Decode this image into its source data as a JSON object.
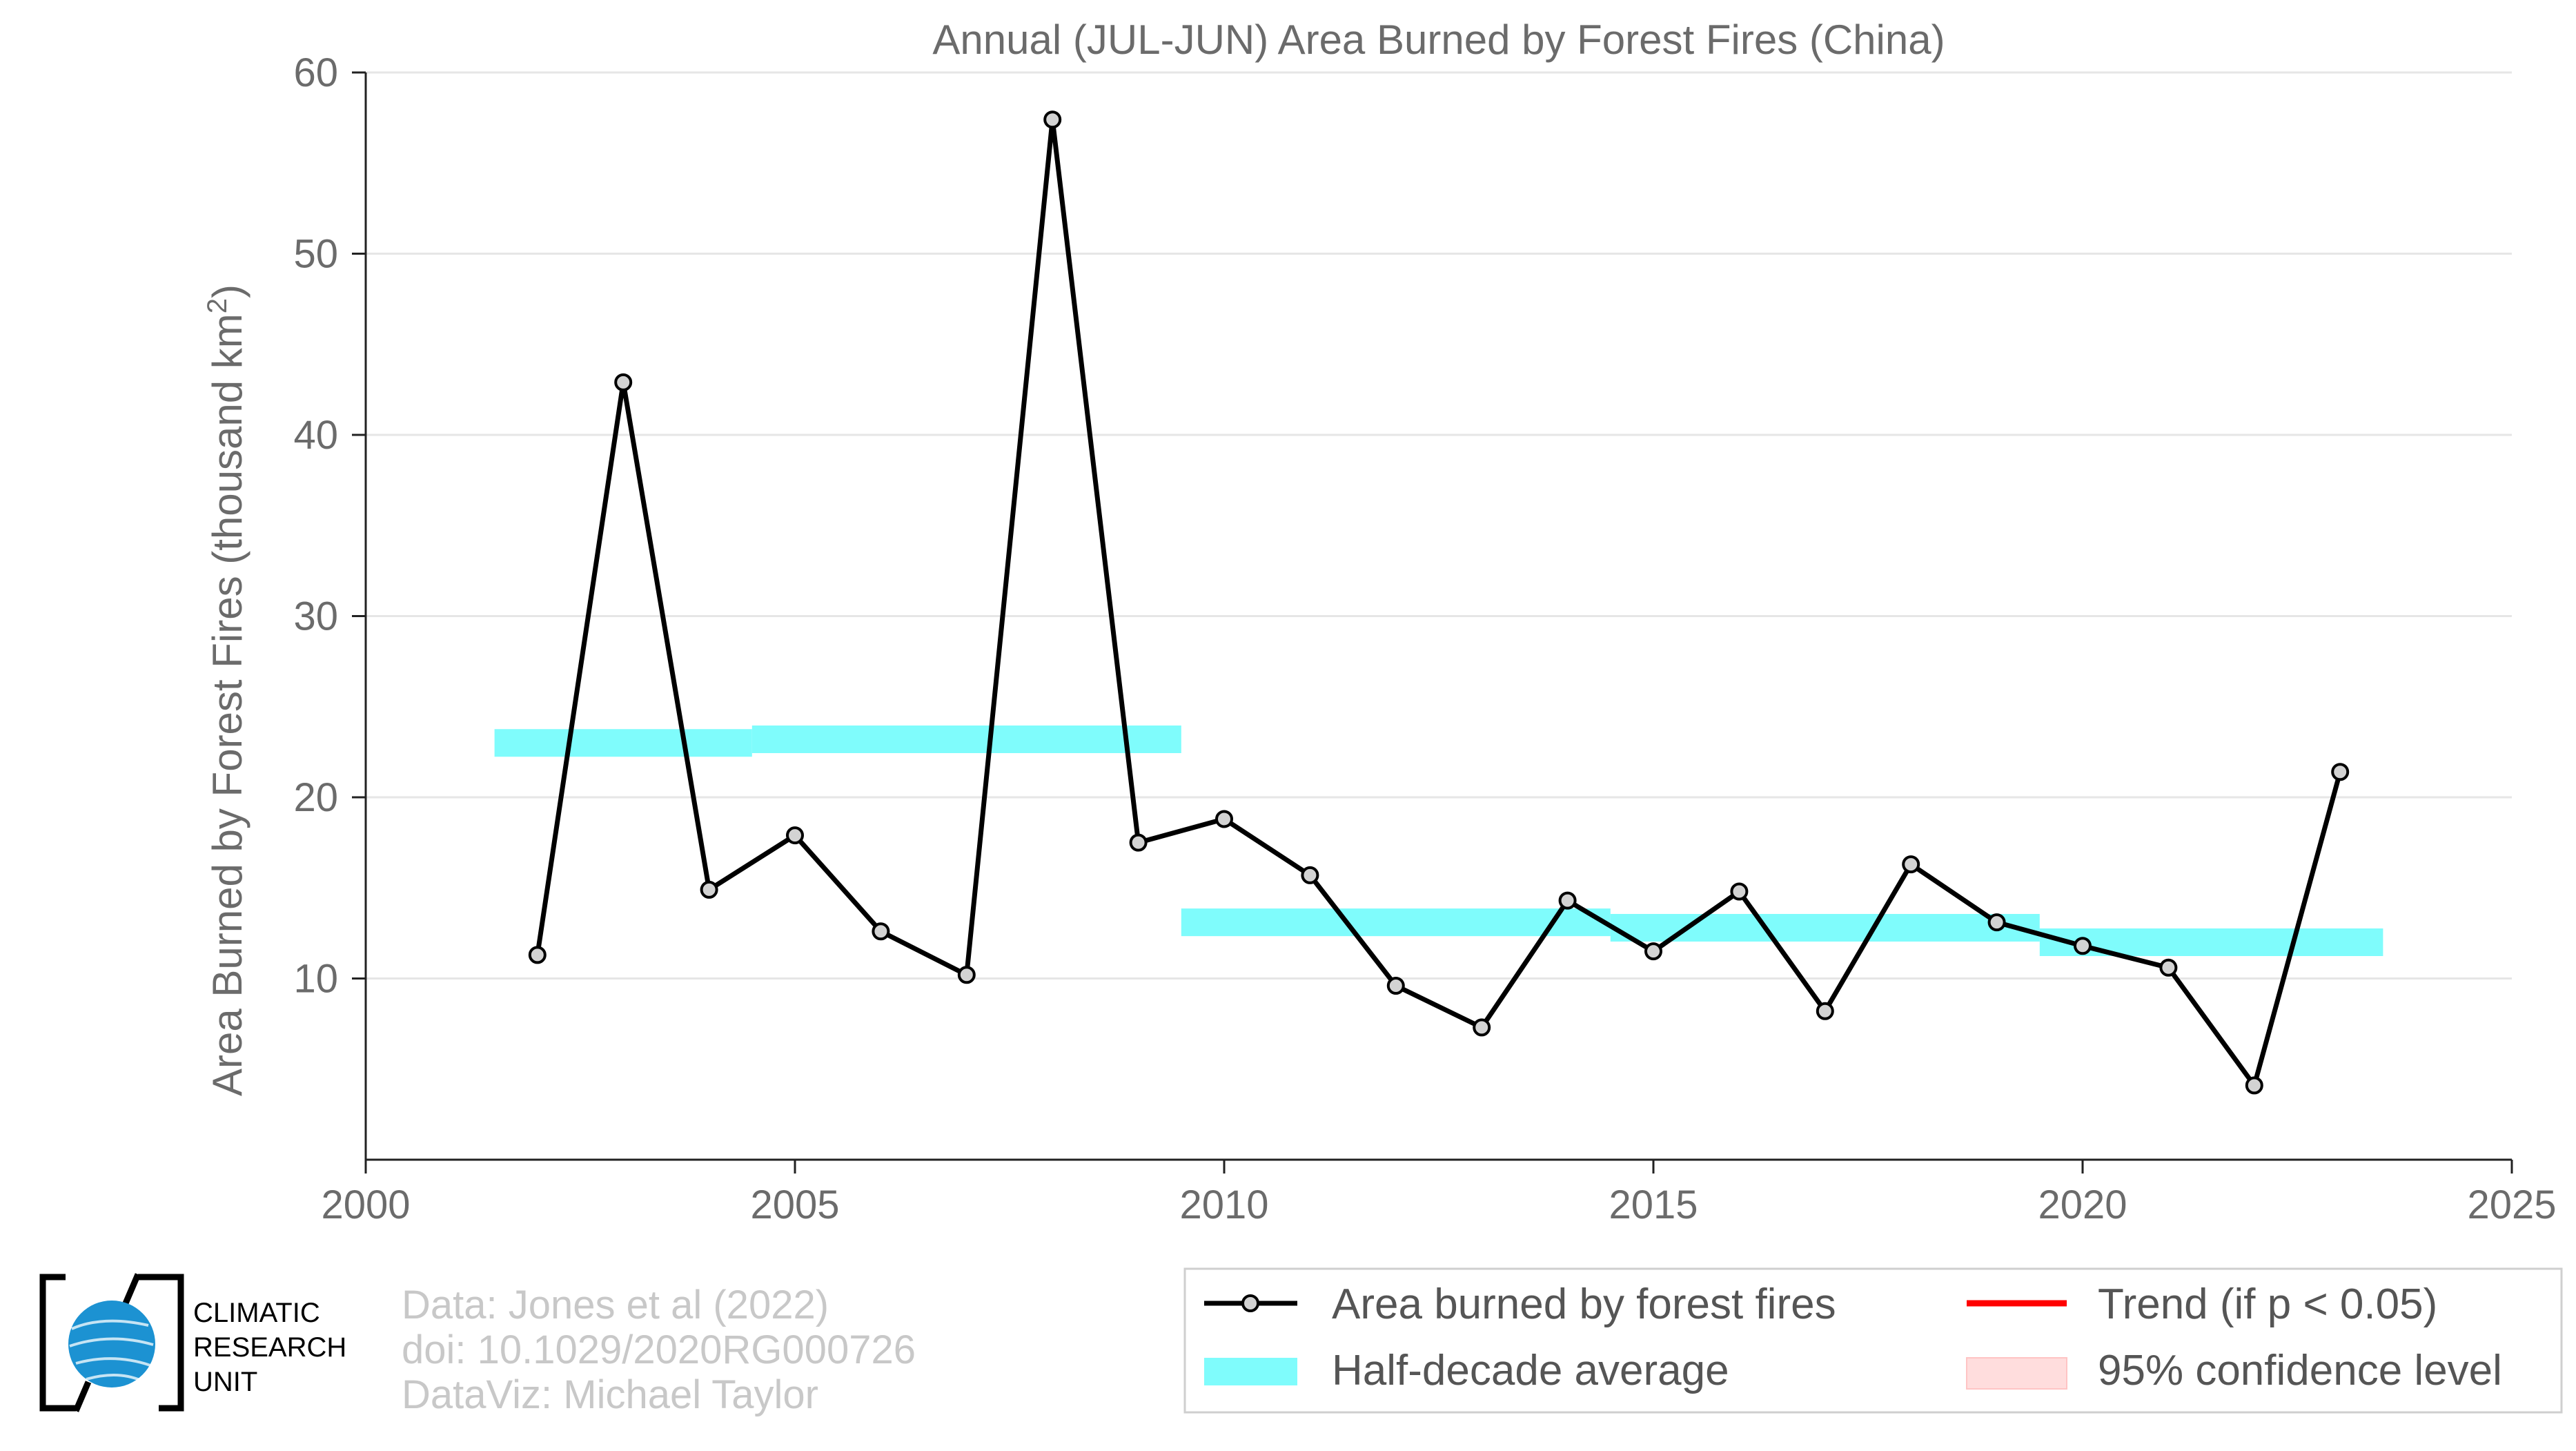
{
  "chart_data": {
    "type": "line",
    "title": "Annual (JUL-JUN) Area Burned by Forest Fires (China)",
    "ylabel": "Area Burned by Forest Fires (thousand km",
    "ylabel_sup": "2",
    "ylabel_end": ")",
    "xlim": [
      2000,
      2025
    ],
    "ylim": [
      0,
      60
    ],
    "x_ticks": [
      2000,
      2005,
      2010,
      2015,
      2020,
      2025
    ],
    "y_ticks": [
      10,
      20,
      30,
      40,
      50,
      60
    ],
    "grid": true,
    "series": [
      {
        "name": "Area burned by forest fires",
        "color": "#000000",
        "marker_fill": "#d3d3d3",
        "x": [
          2002,
          2003,
          2004,
          2005,
          2006,
          2007,
          2008,
          2009,
          2010,
          2011,
          2012,
          2013,
          2014,
          2015,
          2016,
          2017,
          2018,
          2019,
          2020,
          2021,
          2022,
          2023
        ],
        "y": [
          11.3,
          42.9,
          14.9,
          17.9,
          12.6,
          10.2,
          57.4,
          17.5,
          18.8,
          15.7,
          9.6,
          7.3,
          14.3,
          11.5,
          14.8,
          8.2,
          16.3,
          13.1,
          11.8,
          10.6,
          4.1,
          21.4
        ]
      },
      {
        "name": "Half-decade average",
        "color": "#7ffcfc",
        "segments": [
          {
            "x0": 2001.5,
            "x1": 2004.5,
            "y": 23.0
          },
          {
            "x0": 2004.5,
            "x1": 2009.5,
            "y": 23.2
          },
          {
            "x0": 2009.5,
            "x1": 2014.5,
            "y": 13.1
          },
          {
            "x0": 2014.5,
            "x1": 2019.5,
            "y": 12.8
          },
          {
            "x0": 2019.5,
            "x1": 2023.5,
            "y": 12.0
          }
        ]
      },
      {
        "name": "Trend (if p < 0.05)",
        "color": "#ff0000"
      },
      {
        "name": "95% confidence level",
        "color": "#ffdddd"
      }
    ],
    "legend_position": "bottom-right"
  },
  "credits": {
    "line1": "Data: Jones et al (2022)",
    "line2": "doi: 10.1029/2020RG000726",
    "line3": "DataViz: Michael Taylor"
  },
  "logo": {
    "line1": "CLIMATIC",
    "line2": "RESEARCH",
    "line3": "UNIT"
  },
  "legend": {
    "area": "Area burned by forest fires",
    "half": "Half-decade average",
    "trend": "Trend (if p < 0.05)",
    "confidence": "95% confidence level"
  }
}
